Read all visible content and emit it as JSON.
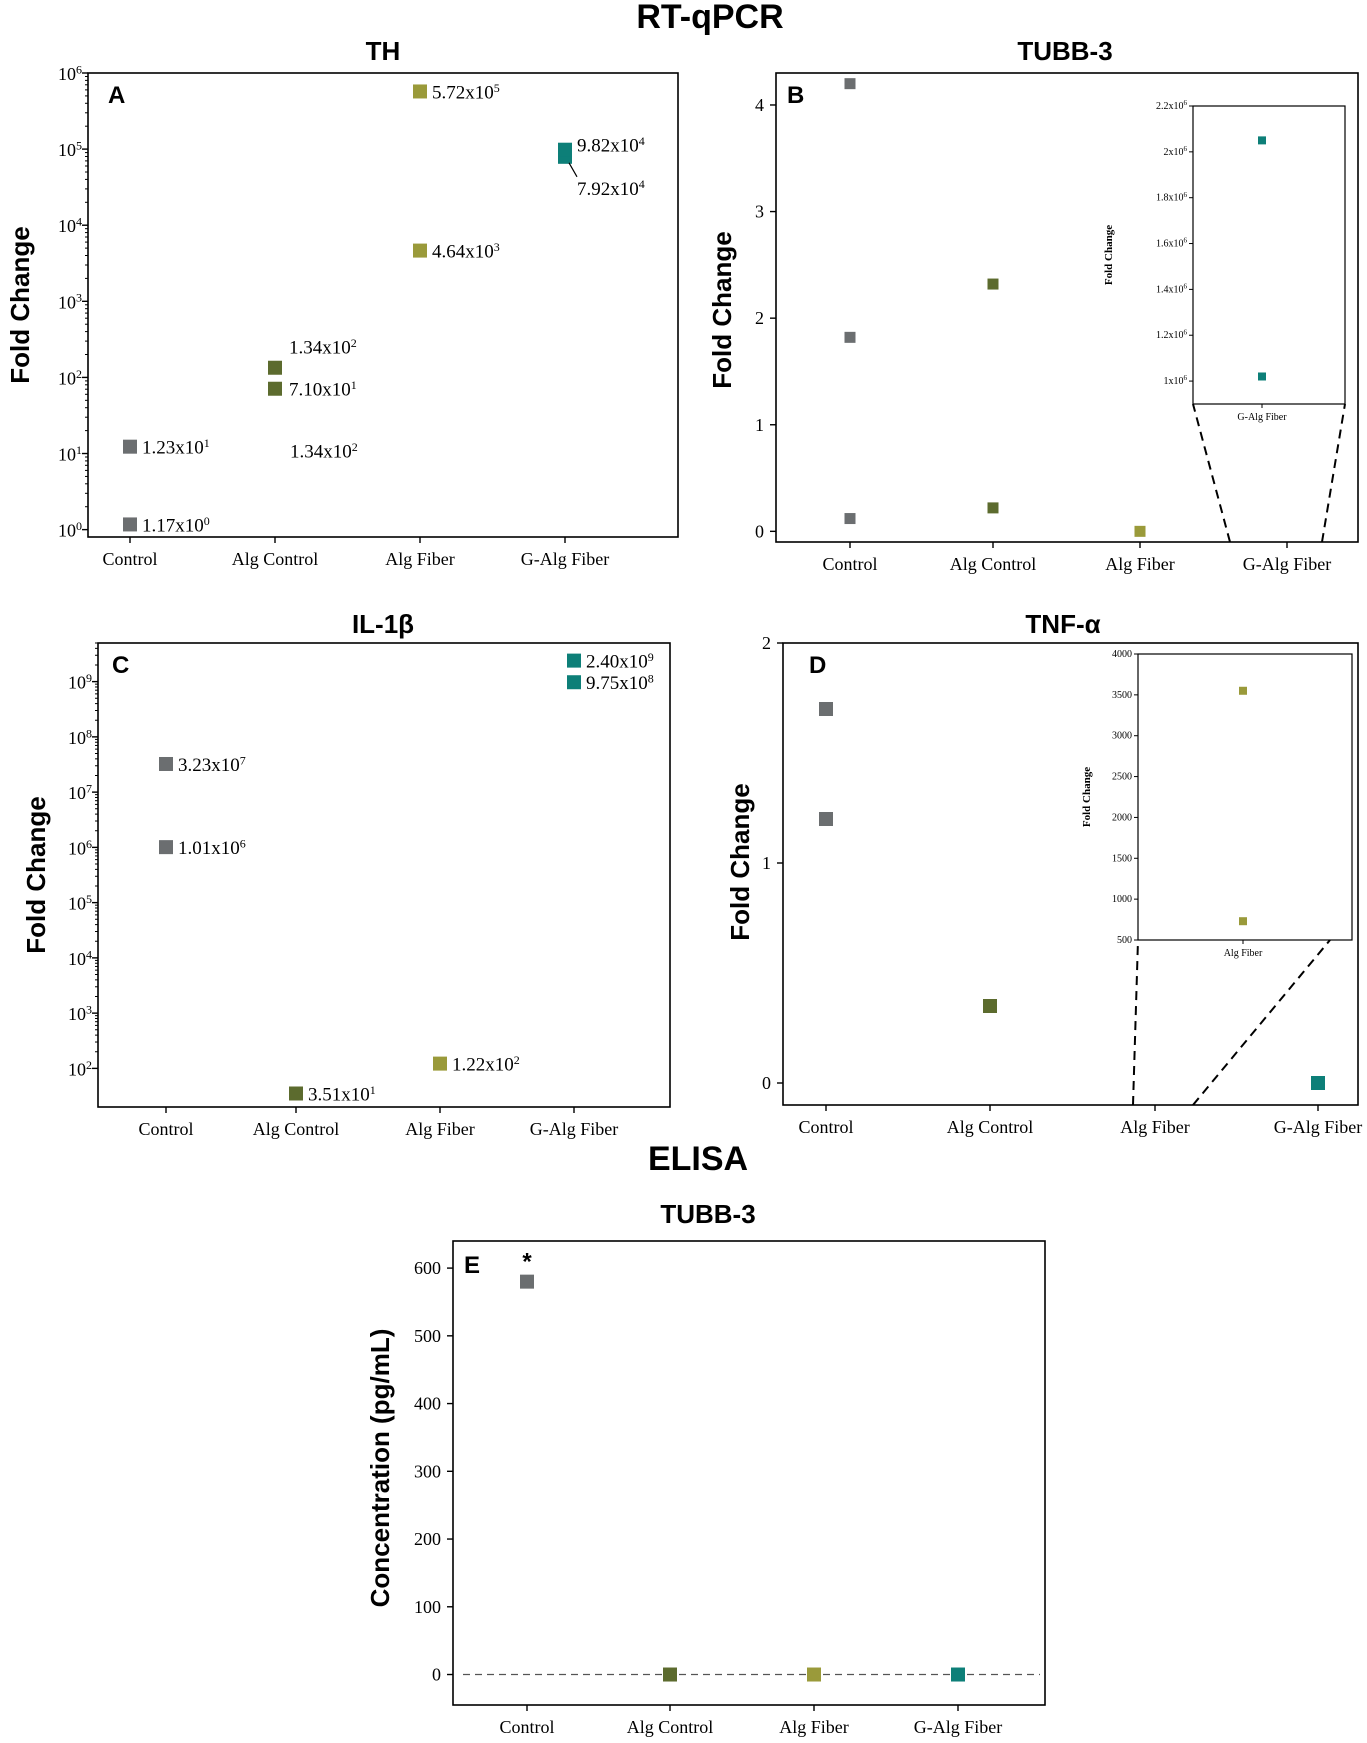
{
  "sections": {
    "rtqpcr": "RT-qPCR",
    "elisa": "ELISA"
  },
  "colors": {
    "Control": "#6b6e70",
    "Alg Control": "#5c6b2e",
    "Alg Fiber": "#9a9a3a",
    "G-Alg Fiber": "#0d7f78"
  },
  "chart_data": [
    {
      "panel": "A",
      "title": "TH",
      "type": "scatter",
      "yscale": "log",
      "ylabel": "Fold Change",
      "categories": [
        "Control",
        "Alg Control",
        "Alg Fiber",
        "G-Alg Fiber"
      ],
      "yticks": [
        "10^0",
        "10^1",
        "10^2",
        "10^3",
        "10^4",
        "10^5",
        "10^6"
      ],
      "ylim": [
        0.8,
        1000000
      ],
      "points": [
        {
          "category": "Control",
          "y": 1.17,
          "label": [
            "1.17x10",
            "0"
          ]
        },
        {
          "category": "Control",
          "y": 12.3,
          "label": [
            "1.23x10",
            "1"
          ]
        },
        {
          "category": "Alg Control",
          "y": 71.0,
          "label": [
            "7.10x10",
            "1"
          ]
        },
        {
          "category": "Alg Control",
          "y": 134,
          "label": [
            "1.34x10",
            "2"
          ]
        },
        {
          "category": "Alg Fiber",
          "y": 4640,
          "label": [
            "4.64x10",
            "3"
          ]
        },
        {
          "category": "Alg Fiber",
          "y": 572000,
          "label": [
            "5.72x10",
            "5"
          ]
        },
        {
          "category": "G-Alg Fiber",
          "y": 79200,
          "label": [
            "7.92x10",
            "4"
          ]
        },
        {
          "category": "G-Alg Fiber",
          "y": 98200,
          "label": [
            "9.82x10",
            "4"
          ]
        }
      ],
      "extra_label": [
        "1.34x10",
        "2"
      ]
    },
    {
      "panel": "B",
      "title": "TUBB-3",
      "type": "scatter",
      "ylabel": "Fold Change",
      "categories": [
        "Control",
        "Alg Control",
        "Alg Fiber",
        "G-Alg Fiber"
      ],
      "yticks": [
        0,
        1,
        2,
        3,
        4
      ],
      "ylim": [
        -0.1,
        4.3
      ],
      "points": [
        {
          "category": "Control",
          "y": 0.12
        },
        {
          "category": "Control",
          "y": 1.82
        },
        {
          "category": "Control",
          "y": 4.2
        },
        {
          "category": "Alg Control",
          "y": 0.22
        },
        {
          "category": "Alg Control",
          "y": 2.32
        },
        {
          "category": "Alg Fiber",
          "y": 0.0
        }
      ],
      "inset": {
        "ylabel": "Fold Change",
        "category": "G-Alg Fiber",
        "yticks": [
          "1x10",
          "1.2x10",
          "1.4x10",
          "1.6x10",
          "1.8x10",
          "2x10",
          "2.2x10"
        ],
        "ytick_exp": "6",
        "ylim": [
          900000,
          2200000
        ],
        "points": [
          1020000,
          2050000
        ]
      }
    },
    {
      "panel": "C",
      "title": "IL-1β",
      "type": "scatter",
      "yscale": "log",
      "ylabel": "Fold Change",
      "categories": [
        "Control",
        "Alg Control",
        "Alg Fiber",
        "G-Alg Fiber"
      ],
      "yticks": [
        "10^2",
        "10^3",
        "10^4",
        "10^5",
        "10^6",
        "10^7",
        "10^8",
        "10^9"
      ],
      "ylim": [
        20,
        5000000000
      ],
      "points": [
        {
          "category": "Control",
          "y": 1010000,
          "label": [
            "1.01x10",
            "6"
          ]
        },
        {
          "category": "Control",
          "y": 32300000,
          "label": [
            "3.23x10",
            "7"
          ]
        },
        {
          "category": "Alg Control",
          "y": 35.1,
          "label": [
            "3.51x10",
            "1"
          ]
        },
        {
          "category": "Alg Fiber",
          "y": 122,
          "label": [
            "1.22x10",
            "2"
          ]
        },
        {
          "category": "G-Alg Fiber",
          "y": 975000000,
          "label": [
            "9.75x10",
            "8"
          ]
        },
        {
          "category": "G-Alg Fiber",
          "y": 2400000000,
          "label": [
            "2.40x10",
            "9"
          ]
        }
      ]
    },
    {
      "panel": "D",
      "title": "TNF-α",
      "type": "scatter",
      "ylabel": "Fold Change",
      "categories": [
        "Control",
        "Alg Control",
        "Alg Fiber",
        "G-Alg Fiber"
      ],
      "yticks": [
        0,
        1,
        2
      ],
      "ylim": [
        -0.1,
        2.0
      ],
      "points": [
        {
          "category": "Control",
          "y": 1.2
        },
        {
          "category": "Control",
          "y": 1.7
        },
        {
          "category": "Alg Control",
          "y": 0.35
        },
        {
          "category": "G-Alg Fiber",
          "y": 0.0
        }
      ],
      "inset": {
        "ylabel": "Fold Change",
        "category": "Alg Fiber",
        "yticks": [
          "500",
          "1000",
          "1500",
          "2000",
          "2500",
          "3000",
          "3500",
          "4000"
        ],
        "ylim": [
          500,
          4000
        ],
        "points": [
          3550,
          730
        ]
      }
    },
    {
      "panel": "E",
      "title": "TUBB-3",
      "type": "scatter",
      "ylabel": "Concentration (pg/mL)",
      "categories": [
        "Control",
        "Alg Control",
        "Alg Fiber",
        "G-Alg Fiber"
      ],
      "yticks": [
        0,
        100,
        200,
        300,
        400,
        500,
        600
      ],
      "ylim": [
        -45,
        640
      ],
      "points": [
        {
          "category": "Control",
          "y": 580,
          "annotation": "*"
        },
        {
          "category": "Alg Control",
          "y": 0
        },
        {
          "category": "Alg Fiber",
          "y": 0
        },
        {
          "category": "G-Alg Fiber",
          "y": 0
        }
      ],
      "reference_line": 0
    }
  ]
}
